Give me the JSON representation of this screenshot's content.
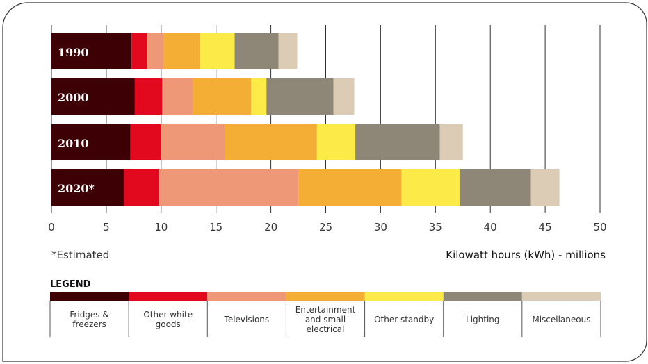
{
  "chart_data": {
    "type": "bar",
    "orientation": "horizontal",
    "stacked": true,
    "categories": [
      "1990",
      "2000",
      "2010",
      "2020*"
    ],
    "series": [
      {
        "name": "Fridges & freezers",
        "color": "#3d0004",
        "values": [
          7.3,
          7.6,
          7.2,
          6.6
        ]
      },
      {
        "name": "Other white goods",
        "color": "#e2081e",
        "values": [
          1.4,
          2.5,
          2.8,
          3.2
        ]
      },
      {
        "name": "Televisions",
        "color": "#ee9878",
        "values": [
          1.5,
          2.8,
          5.8,
          12.7
        ]
      },
      {
        "name": "Entertainment and small electrical",
        "color": "#f5ae35",
        "values": [
          3.3,
          5.3,
          8.4,
          9.4
        ]
      },
      {
        "name": "Other standby",
        "color": "#fbea48",
        "values": [
          3.2,
          1.4,
          3.5,
          5.3
        ]
      },
      {
        "name": "Lighting",
        "color": "#8e8677",
        "values": [
          4.0,
          6.1,
          7.7,
          6.5
        ]
      },
      {
        "name": "Miscellaneous",
        "color": "#dccbb5",
        "values": [
          1.7,
          1.9,
          2.1,
          2.6
        ]
      }
    ],
    "xlim": [
      0,
      50
    ],
    "xticks": [
      0,
      5,
      10,
      15,
      20,
      25,
      30,
      35,
      40,
      45,
      50
    ],
    "xlabel": "Kilowatt hours (kWh) - millions",
    "footnote": "*Estimated",
    "legend_title": "LEGEND",
    "legend_labels": [
      "Fridges &\nfreezers",
      "Other white\ngoods",
      "Televisions",
      "Entertainment\nand small\nelectrical",
      "Other standby",
      "Lighting",
      "Miscellaneous"
    ],
    "grid": true,
    "legend_position": "bottom"
  }
}
